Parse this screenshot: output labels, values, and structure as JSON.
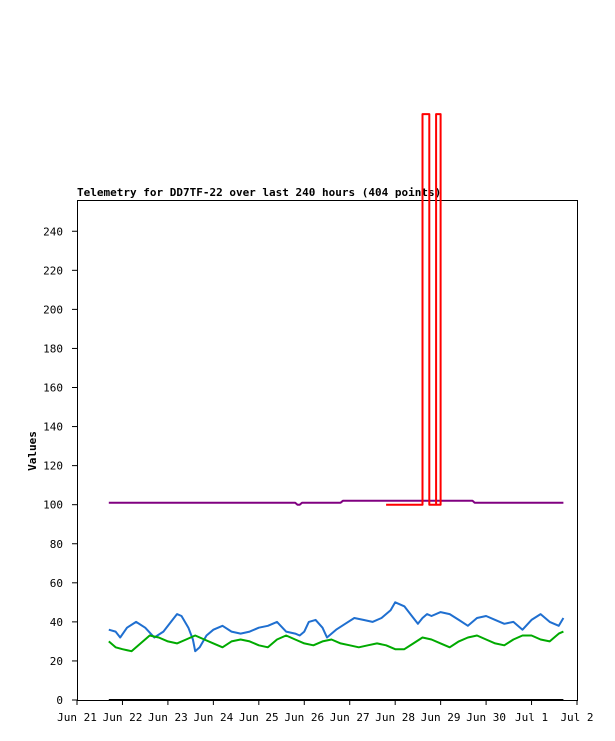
{
  "chart_data": {
    "type": "line",
    "title": "Telemetry for DD7TF-22 over last 240 hours (404 points)",
    "xlabel": "",
    "ylabel": "Values",
    "ylim": [
      0,
      256
    ],
    "yticks": [
      0,
      20,
      40,
      60,
      80,
      100,
      120,
      140,
      160,
      180,
      200,
      220,
      240
    ],
    "x_ticks": [
      "Jun 21",
      "Jun 22",
      "Jun 23",
      "Jun 24",
      "Jun 25",
      "Jun 26",
      "Jun 27",
      "Jun 28",
      "Jun 29",
      "Jun 30",
      "Jul 1",
      "Jul 2"
    ],
    "grid": false,
    "legend": "none",
    "series": [
      {
        "color": "#800080",
        "x": [
          21.7,
          22.0,
          23.0,
          24.0,
          25.0,
          25.8,
          25.85,
          25.9,
          25.95,
          26.0,
          26.5,
          26.8,
          26.85,
          27.0,
          27.5,
          28.0,
          28.5,
          29.0,
          29.5,
          29.7,
          29.75,
          30.0,
          30.5,
          31.0,
          31.5,
          31.7
        ],
        "y": [
          101,
          101,
          101,
          101,
          101,
          101,
          100,
          100,
          101,
          101,
          101,
          101,
          102,
          102,
          102,
          102,
          102,
          102,
          102,
          102,
          101,
          101,
          101,
          101,
          101,
          101
        ]
      },
      {
        "color": "#ff0000",
        "x": [
          27.8,
          28.6,
          28.6,
          28.75,
          28.75,
          29.0,
          29.0,
          28.9,
          28.9,
          29.0
        ],
        "y": [
          100,
          100,
          300,
          300,
          100,
          100,
          300,
          300,
          100,
          100
        ]
      },
      {
        "color": "#1f6fd0",
        "x": [
          21.7,
          21.85,
          21.95,
          22.1,
          22.3,
          22.5,
          22.7,
          22.9,
          23.1,
          23.2,
          23.3,
          23.45,
          23.55,
          23.6,
          23.7,
          23.85,
          24.0,
          24.2,
          24.4,
          24.6,
          24.8,
          25.0,
          25.2,
          25.4,
          25.6,
          25.8,
          25.9,
          26.0,
          26.1,
          26.25,
          26.4,
          26.5,
          26.7,
          26.9,
          27.1,
          27.3,
          27.5,
          27.7,
          27.9,
          28.0,
          28.2,
          28.4,
          28.5,
          28.6,
          28.7,
          28.8,
          29.0,
          29.2,
          29.4,
          29.6,
          29.8,
          30.0,
          30.2,
          30.4,
          30.6,
          30.8,
          31.0,
          31.2,
          31.4,
          31.6,
          31.7
        ],
        "y": [
          36,
          35,
          32,
          37,
          40,
          37,
          32,
          35,
          41,
          44,
          43,
          37,
          31,
          25,
          27,
          33,
          36,
          38,
          35,
          34,
          35,
          37,
          38,
          40,
          35,
          34,
          33,
          35,
          40,
          41,
          37,
          32,
          36,
          39,
          42,
          41,
          40,
          42,
          46,
          50,
          48,
          42,
          39,
          42,
          44,
          43,
          45,
          44,
          41,
          38,
          42,
          43,
          41,
          39,
          40,
          36,
          41,
          44,
          40,
          38,
          42
        ]
      },
      {
        "color": "#00aa00",
        "x": [
          21.7,
          21.85,
          22.0,
          22.2,
          22.4,
          22.6,
          22.8,
          23.0,
          23.2,
          23.4,
          23.6,
          23.8,
          24.0,
          24.2,
          24.4,
          24.6,
          24.8,
          25.0,
          25.2,
          25.4,
          25.6,
          25.8,
          26.0,
          26.2,
          26.4,
          26.6,
          26.8,
          27.0,
          27.2,
          27.4,
          27.6,
          27.8,
          28.0,
          28.2,
          28.4,
          28.6,
          28.8,
          29.0,
          29.2,
          29.4,
          29.6,
          29.8,
          30.0,
          30.2,
          30.4,
          30.6,
          30.8,
          31.0,
          31.2,
          31.4,
          31.6,
          31.7
        ],
        "y": [
          30,
          27,
          26,
          25,
          29,
          33,
          32,
          30,
          29,
          31,
          33,
          31,
          29,
          27,
          30,
          31,
          30,
          28,
          27,
          31,
          33,
          31,
          29,
          28,
          30,
          31,
          29,
          28,
          27,
          28,
          29,
          28,
          26,
          26,
          29,
          32,
          31,
          29,
          27,
          30,
          32,
          33,
          31,
          29,
          28,
          31,
          33,
          33,
          31,
          30,
          34,
          35
        ]
      },
      {
        "color": "#000000",
        "x": [
          21.7,
          31.7
        ],
        "y": [
          0,
          0
        ]
      }
    ]
  }
}
